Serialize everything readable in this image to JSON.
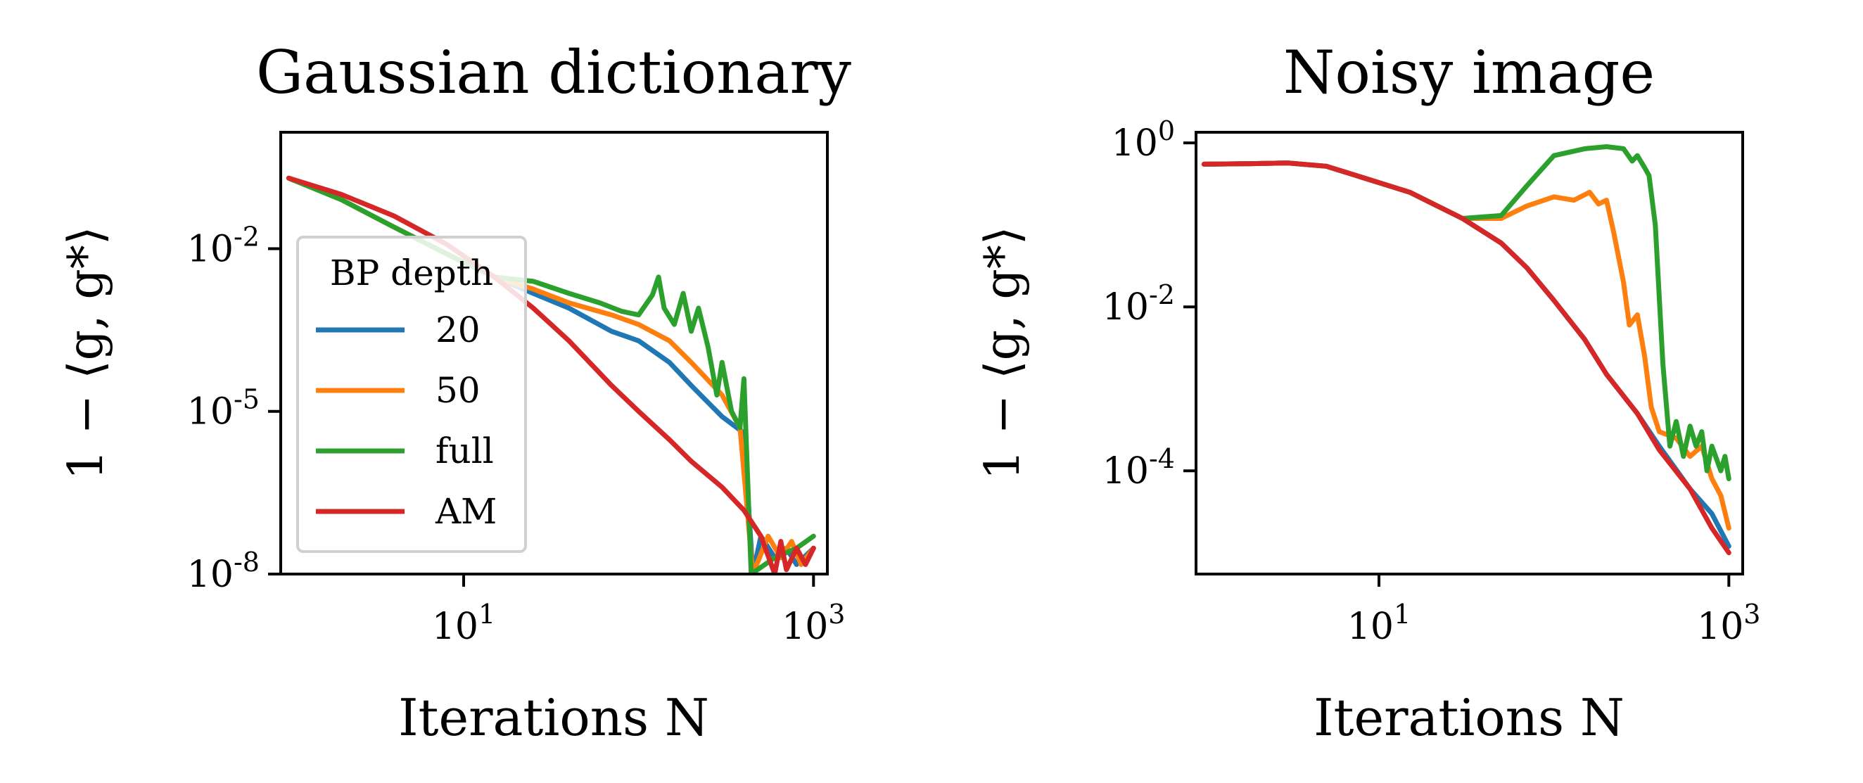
{
  "chart_data": [
    {
      "type": "line",
      "title": "Gaussian dictionary",
      "xlabel": "Iterations N",
      "ylabel": "1 − ⟨g, g*⟩",
      "xscale": "log",
      "yscale": "log",
      "xlim": [
        1,
        1000
      ],
      "ylim": [
        1e-08,
        1
      ],
      "xticks": [
        {
          "value": 10,
          "base": "10",
          "exp": "1"
        },
        {
          "value": 1000,
          "base": "10",
          "exp": "3"
        }
      ],
      "yticks": [
        {
          "value": 0.01,
          "base": "10",
          "exp": "-2"
        },
        {
          "value": 1e-05,
          "base": "10",
          "exp": "-5"
        },
        {
          "value": 1e-08,
          "base": "10",
          "exp": "-8"
        }
      ],
      "legend": {
        "title": "BP depth",
        "placement": "center-left"
      },
      "series": [
        {
          "name": "20",
          "color": "#1f77b4",
          "points": [
            [
              1,
              0.2
            ],
            [
              2,
              0.08
            ],
            [
              4,
              0.025
            ],
            [
              8,
              0.008
            ],
            [
              15,
              0.003
            ],
            [
              25,
              0.0015
            ],
            [
              40,
              0.0008
            ],
            [
              70,
              0.0003
            ],
            [
              100,
              0.0002
            ],
            [
              150,
              8e-05
            ],
            [
              200,
              3e-05
            ],
            [
              300,
              8e-06
            ],
            [
              400,
              4e-06
            ],
            [
              450,
              1e-08
            ],
            [
              500,
              5e-08
            ],
            [
              600,
              2e-08
            ],
            [
              700,
              3e-08
            ],
            [
              800,
              1.5e-08
            ],
            [
              1000,
              3e-08
            ]
          ]
        },
        {
          "name": "50",
          "color": "#ff7f0e",
          "points": [
            [
              1,
              0.2
            ],
            [
              2,
              0.08
            ],
            [
              4,
              0.025
            ],
            [
              8,
              0.008
            ],
            [
              15,
              0.003
            ],
            [
              25,
              0.0018
            ],
            [
              40,
              0.001
            ],
            [
              70,
              0.0006
            ],
            [
              100,
              0.0004
            ],
            [
              150,
              0.0002
            ],
            [
              200,
              8e-05
            ],
            [
              300,
              2e-05
            ],
            [
              380,
              5e-06
            ],
            [
              450,
              1e-08
            ],
            [
              550,
              5e-08
            ],
            [
              650,
              2e-08
            ],
            [
              750,
              4e-08
            ],
            [
              850,
              1.5e-08
            ],
            [
              1000,
              3e-08
            ]
          ]
        },
        {
          "name": "full",
          "color": "#2ca02c",
          "points": [
            [
              1,
              0.2
            ],
            [
              2,
              0.08
            ],
            [
              4,
              0.025
            ],
            [
              8,
              0.008
            ],
            [
              15,
              0.003
            ],
            [
              25,
              0.0025
            ],
            [
              40,
              0.0015
            ],
            [
              60,
              0.001
            ],
            [
              80,
              0.0007
            ],
            [
              100,
              0.0006
            ],
            [
              120,
              0.0014
            ],
            [
              130,
              0.003
            ],
            [
              140,
              0.0008
            ],
            [
              160,
              0.0004
            ],
            [
              180,
              0.0015
            ],
            [
              200,
              0.0003
            ],
            [
              220,
              0.0008
            ],
            [
              250,
              0.00015
            ],
            [
              280,
              2e-05
            ],
            [
              300,
              8e-05
            ],
            [
              340,
              1e-05
            ],
            [
              380,
              5e-06
            ],
            [
              400,
              4e-05
            ],
            [
              440,
              1e-08
            ],
            [
              600,
              2e-08
            ],
            [
              800,
              3e-08
            ],
            [
              1000,
              5e-08
            ]
          ]
        },
        {
          "name": "AM",
          "color": "#d62728",
          "points": [
            [
              1,
              0.2
            ],
            [
              2,
              0.1
            ],
            [
              4,
              0.04
            ],
            [
              8,
              0.012
            ],
            [
              15,
              0.003
            ],
            [
              25,
              0.0008
            ],
            [
              40,
              0.0002
            ],
            [
              70,
              3e-05
            ],
            [
              100,
              1e-05
            ],
            [
              150,
              3e-06
            ],
            [
              200,
              1.2e-06
            ],
            [
              300,
              4e-07
            ],
            [
              400,
              1.5e-07
            ],
            [
              500,
              5e-08
            ],
            [
              600,
              1e-08
            ],
            [
              650,
              4e-08
            ],
            [
              700,
              1.2e-08
            ],
            [
              800,
              3e-08
            ],
            [
              900,
              1.5e-08
            ],
            [
              1000,
              3e-08
            ]
          ]
        }
      ]
    },
    {
      "type": "line",
      "title": "Noisy image",
      "xlabel": "Iterations N",
      "ylabel": "1 − ⟨g, g*⟩",
      "xscale": "log",
      "yscale": "log",
      "xlim": [
        1,
        1000
      ],
      "ylim": [
        5e-06,
        1
      ],
      "xticks": [
        {
          "value": 10,
          "base": "10",
          "exp": "1"
        },
        {
          "value": 1000,
          "base": "10",
          "exp": "3"
        }
      ],
      "yticks": [
        {
          "value": 1,
          "base": "10",
          "exp": "0"
        },
        {
          "value": 0.01,
          "base": "10",
          "exp": "-2"
        },
        {
          "value": 0.0001,
          "base": "10",
          "exp": "-4"
        }
      ],
      "series": [
        {
          "name": "20",
          "color": "#1f77b4",
          "points": [
            [
              1,
              0.55
            ],
            [
              2,
              0.56
            ],
            [
              3,
              0.57
            ],
            [
              5,
              0.52
            ],
            [
              8,
              0.38
            ],
            [
              15,
              0.25
            ],
            [
              30,
              0.12
            ],
            [
              50,
              0.06
            ],
            [
              70,
              0.03
            ],
            [
              100,
              0.012
            ],
            [
              150,
              0.004
            ],
            [
              200,
              0.0015
            ],
            [
              300,
              0.0005
            ],
            [
              400,
              0.0002
            ],
            [
              600,
              6e-05
            ],
            [
              800,
              3e-05
            ],
            [
              1000,
              1.2e-05
            ]
          ]
        },
        {
          "name": "50",
          "color": "#ff7f0e",
          "points": [
            [
              1,
              0.55
            ],
            [
              2,
              0.56
            ],
            [
              3,
              0.57
            ],
            [
              5,
              0.52
            ],
            [
              8,
              0.38
            ],
            [
              15,
              0.25
            ],
            [
              30,
              0.12
            ],
            [
              50,
              0.12
            ],
            [
              70,
              0.17
            ],
            [
              100,
              0.22
            ],
            [
              130,
              0.2
            ],
            [
              160,
              0.25
            ],
            [
              180,
              0.18
            ],
            [
              200,
              0.2
            ],
            [
              220,
              0.08
            ],
            [
              250,
              0.02
            ],
            [
              270,
              0.006
            ],
            [
              300,
              0.008
            ],
            [
              330,
              0.0025
            ],
            [
              360,
              0.0006
            ],
            [
              400,
              0.0003
            ],
            [
              500,
              0.00025
            ],
            [
              600,
              0.00015
            ],
            [
              700,
              0.0002
            ],
            [
              800,
              8e-05
            ],
            [
              900,
              5e-05
            ],
            [
              1000,
              2e-05
            ]
          ]
        },
        {
          "name": "full",
          "color": "#2ca02c",
          "points": [
            [
              1,
              0.55
            ],
            [
              2,
              0.56
            ],
            [
              3,
              0.57
            ],
            [
              5,
              0.52
            ],
            [
              8,
              0.38
            ],
            [
              15,
              0.25
            ],
            [
              30,
              0.12
            ],
            [
              50,
              0.13
            ],
            [
              70,
              0.3
            ],
            [
              100,
              0.7
            ],
            [
              150,
              0.85
            ],
            [
              200,
              0.9
            ],
            [
              250,
              0.85
            ],
            [
              280,
              0.6
            ],
            [
              300,
              0.7
            ],
            [
              330,
              0.5
            ],
            [
              350,
              0.4
            ],
            [
              380,
              0.1
            ],
            [
              420,
              0.002
            ],
            [
              460,
              0.0002
            ],
            [
              500,
              0.0004
            ],
            [
              550,
              0.00015
            ],
            [
              600,
              0.00035
            ],
            [
              650,
              0.0002
            ],
            [
              700,
              0.0003
            ],
            [
              750,
              0.0001
            ],
            [
              800,
              0.0002
            ],
            [
              900,
              0.0001
            ],
            [
              950,
              0.00015
            ],
            [
              1000,
              8e-05
            ]
          ]
        },
        {
          "name": "AM",
          "color": "#d62728",
          "points": [
            [
              1,
              0.55
            ],
            [
              2,
              0.56
            ],
            [
              3,
              0.57
            ],
            [
              5,
              0.52
            ],
            [
              8,
              0.38
            ],
            [
              15,
              0.25
            ],
            [
              30,
              0.12
            ],
            [
              50,
              0.06
            ],
            [
              70,
              0.03
            ],
            [
              100,
              0.012
            ],
            [
              150,
              0.004
            ],
            [
              200,
              0.0015
            ],
            [
              300,
              0.0005
            ],
            [
              400,
              0.00018
            ],
            [
              600,
              6e-05
            ],
            [
              800,
              2e-05
            ],
            [
              1000,
              1e-05
            ]
          ]
        }
      ]
    }
  ]
}
